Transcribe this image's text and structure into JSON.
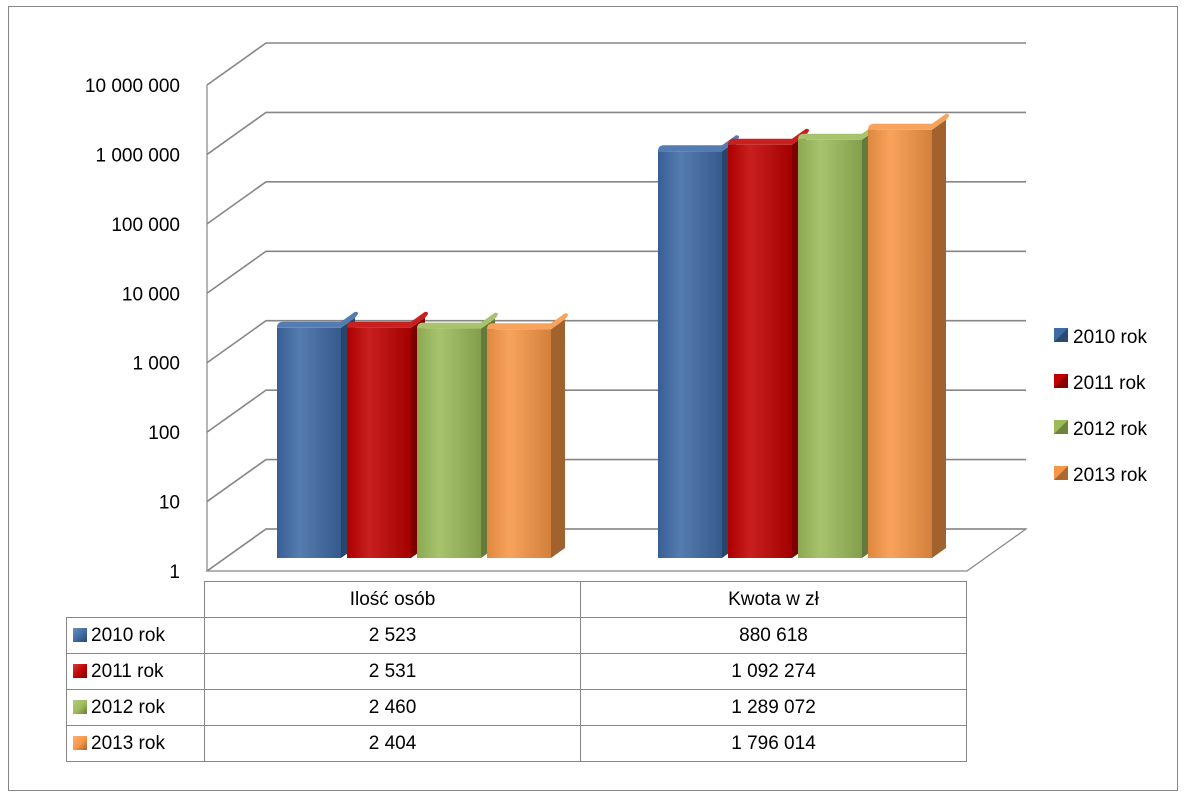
{
  "chart_data": {
    "type": "bar",
    "categories": [
      "Ilość osób",
      "Kwota w zł"
    ],
    "series": [
      {
        "name": "2010 rok",
        "values": [
          2523,
          880618
        ],
        "labels": [
          "2 523",
          "880 618"
        ],
        "color": "#3e6aa5"
      },
      {
        "name": "2011 rok",
        "values": [
          2531,
          1092274
        ],
        "labels": [
          "2 531",
          "1 092 274"
        ],
        "color": "#c00000"
      },
      {
        "name": "2012 rok",
        "values": [
          2460,
          1289072
        ],
        "labels": [
          "2 460",
          "1 289 072"
        ],
        "color": "#9bbb59"
      },
      {
        "name": "2013 rok",
        "values": [
          2404,
          1796014
        ],
        "labels": [
          "2 404",
          "1 796 014"
        ],
        "color": "#f79646"
      }
    ],
    "y_scale": "log",
    "ylim": [
      1,
      10000000
    ],
    "y_ticks": [
      {
        "value": 1,
        "label": "1"
      },
      {
        "value": 10,
        "label": "10"
      },
      {
        "value": 100,
        "label": "100"
      },
      {
        "value": 1000,
        "label": "1 000"
      },
      {
        "value": 10000,
        "label": "10 000"
      },
      {
        "value": 100000,
        "label": "100 000"
      },
      {
        "value": 1000000,
        "label": "1 000 000"
      },
      {
        "value": 10000000,
        "label": "10 000 000"
      }
    ],
    "title": "",
    "xlabel": "",
    "ylabel": "",
    "grid": true,
    "legend_position": "right",
    "data_table": true
  }
}
